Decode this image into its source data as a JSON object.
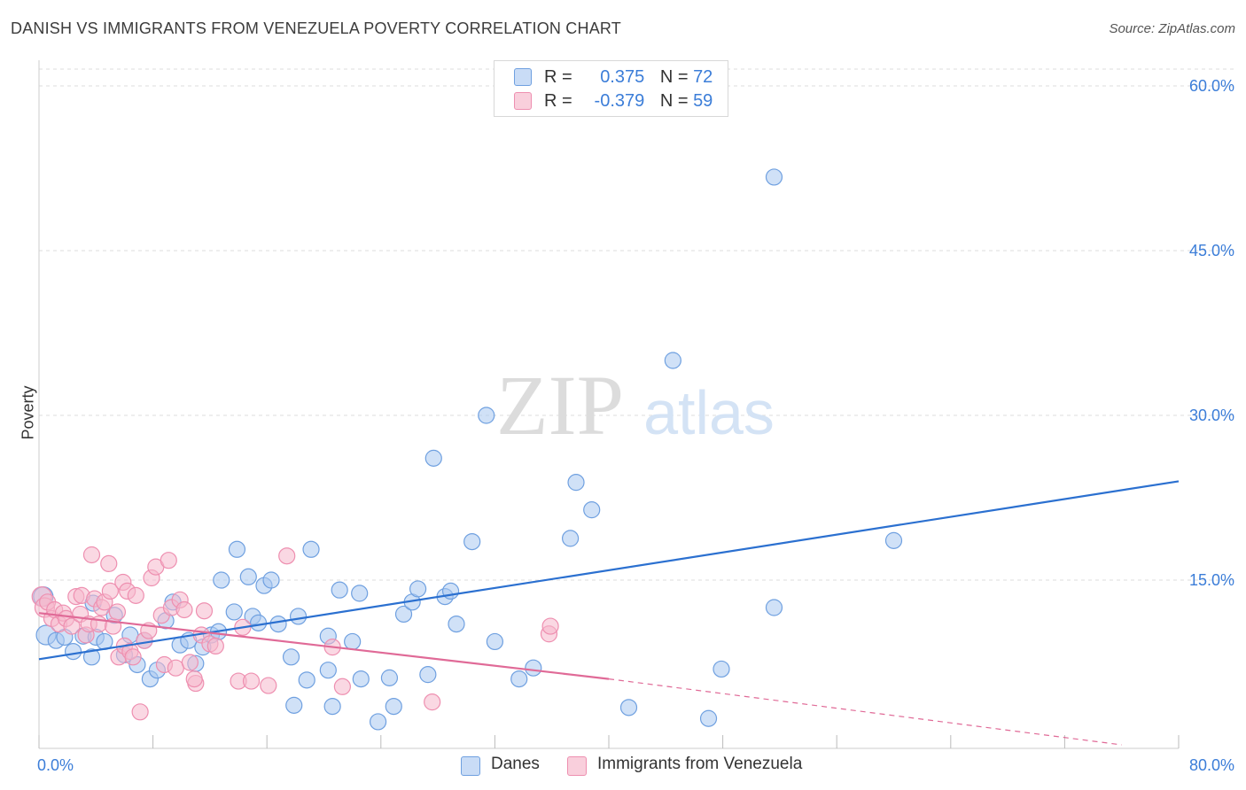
{
  "title": "DANISH VS IMMIGRANTS FROM VENEZUELA POVERTY CORRELATION CHART",
  "source": "Source: ZipAtlas.com",
  "watermark": {
    "zip": "ZIP",
    "atlas": "atlas"
  },
  "legend": {
    "rows": [
      {
        "r_label": "R =",
        "r_value": "0.375",
        "n_label": "N =",
        "n_value": "72",
        "color": "#a9c8f0"
      },
      {
        "r_label": "R =",
        "r_value": "-0.379",
        "n_label": "N =",
        "n_value": "59",
        "color": "#f5b8cc"
      }
    ]
  },
  "bottom_legend": [
    {
      "label": "Danes",
      "color": "#a9c8f0"
    },
    {
      "label": "Immigrants from Venezuela",
      "color": "#f5b8cc"
    }
  ],
  "chart_data": {
    "type": "scatter",
    "title": "DANISH VS IMMIGRANTS FROM VENEZUELA POVERTY CORRELATION CHART",
    "xlabel": "",
    "ylabel": "Poverty",
    "xlim": [
      0,
      80
    ],
    "ylim": [
      0,
      62
    ],
    "x_tick_labels": [
      "0.0%",
      "80.0%"
    ],
    "y_ticks": [
      15,
      30,
      45,
      60
    ],
    "y_tick_labels": [
      "15.0%",
      "30.0%",
      "45.0%",
      "60.0%"
    ],
    "grid": true,
    "legend_position": "top-center",
    "series": [
      {
        "name": "Danes",
        "color": "#6fa0e0",
        "fill": "#a9c8f0",
        "trend_color": "#2b70d0",
        "trend": [
          [
            0,
            7.8
          ],
          [
            80,
            24.0
          ]
        ],
        "points": [
          [
            0.5,
            10.0
          ],
          [
            1.2,
            9.5
          ],
          [
            1.8,
            9.8
          ],
          [
            2.4,
            8.5
          ],
          [
            3.1,
            9.9
          ],
          [
            3.7,
            8.0
          ],
          [
            4.0,
            9.8
          ],
          [
            4.6,
            9.4
          ],
          [
            5.3,
            11.8
          ],
          [
            6.0,
            8.2
          ],
          [
            6.4,
            10.0
          ],
          [
            6.9,
            7.3
          ],
          [
            7.4,
            9.5
          ],
          [
            7.8,
            6.0
          ],
          [
            8.3,
            6.8
          ],
          [
            8.9,
            11.3
          ],
          [
            9.4,
            13.0
          ],
          [
            9.9,
            9.1
          ],
          [
            10.5,
            9.5
          ],
          [
            11.0,
            7.4
          ],
          [
            11.5,
            8.9
          ],
          [
            12.1,
            10.0
          ],
          [
            12.6,
            10.3
          ],
          [
            12.8,
            15.0
          ],
          [
            13.7,
            12.1
          ],
          [
            13.9,
            17.8
          ],
          [
            14.7,
            15.3
          ],
          [
            15.0,
            11.7
          ],
          [
            15.4,
            11.1
          ],
          [
            15.8,
            14.5
          ],
          [
            16.3,
            15.0
          ],
          [
            16.8,
            11.0
          ],
          [
            17.7,
            8.0
          ],
          [
            17.9,
            3.6
          ],
          [
            18.2,
            11.7
          ],
          [
            18.8,
            5.9
          ],
          [
            19.1,
            17.8
          ],
          [
            20.3,
            6.8
          ],
          [
            20.3,
            9.9
          ],
          [
            20.6,
            3.5
          ],
          [
            21.1,
            14.1
          ],
          [
            22.0,
            9.4
          ],
          [
            22.5,
            13.8
          ],
          [
            22.6,
            6.0
          ],
          [
            23.8,
            2.1
          ],
          [
            24.6,
            6.1
          ],
          [
            24.9,
            3.5
          ],
          [
            25.6,
            11.9
          ],
          [
            26.2,
            13.0
          ],
          [
            26.6,
            14.2
          ],
          [
            27.3,
            6.4
          ],
          [
            27.7,
            26.1
          ],
          [
            28.5,
            13.5
          ],
          [
            28.9,
            14.0
          ],
          [
            29.3,
            11.0
          ],
          [
            30.4,
            18.5
          ],
          [
            31.4,
            30.0
          ],
          [
            32.0,
            9.4
          ],
          [
            33.7,
            6.0
          ],
          [
            34.7,
            7.0
          ],
          [
            37.3,
            18.8
          ],
          [
            37.7,
            23.9
          ],
          [
            38.8,
            21.4
          ],
          [
            41.4,
            3.4
          ],
          [
            44.5,
            35.0
          ],
          [
            47.0,
            2.4
          ],
          [
            47.9,
            6.9
          ],
          [
            51.6,
            51.7
          ],
          [
            51.6,
            12.5
          ],
          [
            60.0,
            18.6
          ],
          [
            0.3,
            13.5
          ],
          [
            3.8,
            12.9
          ]
        ]
      },
      {
        "name": "Immigrants from Venezuela",
        "color": "#ee8fb0",
        "fill": "#f5b8cc",
        "trend_color": "#e06a97",
        "trend": [
          [
            0,
            12.0
          ],
          [
            40,
            6.0
          ]
        ],
        "trend_dashed": [
          [
            40,
            6.0
          ],
          [
            76,
            0.0
          ]
        ],
        "points": [
          [
            0.2,
            13.5
          ],
          [
            0.4,
            12.5
          ],
          [
            0.6,
            13.0
          ],
          [
            0.9,
            11.5
          ],
          [
            1.1,
            12.3
          ],
          [
            1.4,
            11.0
          ],
          [
            1.7,
            12.0
          ],
          [
            1.9,
            11.5
          ],
          [
            2.3,
            10.8
          ],
          [
            2.6,
            13.5
          ],
          [
            2.9,
            11.9
          ],
          [
            3.0,
            13.6
          ],
          [
            3.3,
            10.0
          ],
          [
            3.5,
            11.0
          ],
          [
            3.7,
            17.3
          ],
          [
            3.9,
            13.3
          ],
          [
            4.2,
            11.0
          ],
          [
            4.4,
            12.5
          ],
          [
            4.6,
            13.0
          ],
          [
            4.9,
            16.5
          ],
          [
            5.0,
            14.0
          ],
          [
            5.2,
            10.8
          ],
          [
            5.5,
            12.1
          ],
          [
            5.6,
            8.0
          ],
          [
            5.9,
            14.8
          ],
          [
            6.0,
            9.0
          ],
          [
            6.2,
            14.0
          ],
          [
            6.4,
            8.5
          ],
          [
            6.6,
            8.0
          ],
          [
            6.8,
            13.6
          ],
          [
            7.1,
            3.0
          ],
          [
            7.4,
            9.5
          ],
          [
            7.7,
            10.4
          ],
          [
            7.9,
            15.2
          ],
          [
            8.2,
            16.2
          ],
          [
            8.6,
            11.8
          ],
          [
            8.8,
            7.3
          ],
          [
            9.1,
            16.8
          ],
          [
            9.3,
            12.5
          ],
          [
            9.6,
            7.0
          ],
          [
            9.9,
            13.2
          ],
          [
            10.2,
            12.3
          ],
          [
            10.6,
            7.5
          ],
          [
            11.0,
            5.6
          ],
          [
            11.4,
            10.0
          ],
          [
            11.6,
            12.2
          ],
          [
            12.0,
            9.2
          ],
          [
            12.4,
            9.0
          ],
          [
            14.0,
            5.8
          ],
          [
            14.3,
            10.7
          ],
          [
            14.9,
            5.8
          ],
          [
            16.1,
            5.4
          ],
          [
            17.4,
            17.2
          ],
          [
            20.6,
            8.9
          ],
          [
            21.3,
            5.3
          ],
          [
            27.6,
            3.9
          ],
          [
            35.8,
            10.1
          ],
          [
            35.9,
            10.8
          ],
          [
            10.9,
            6.0
          ]
        ]
      }
    ]
  }
}
